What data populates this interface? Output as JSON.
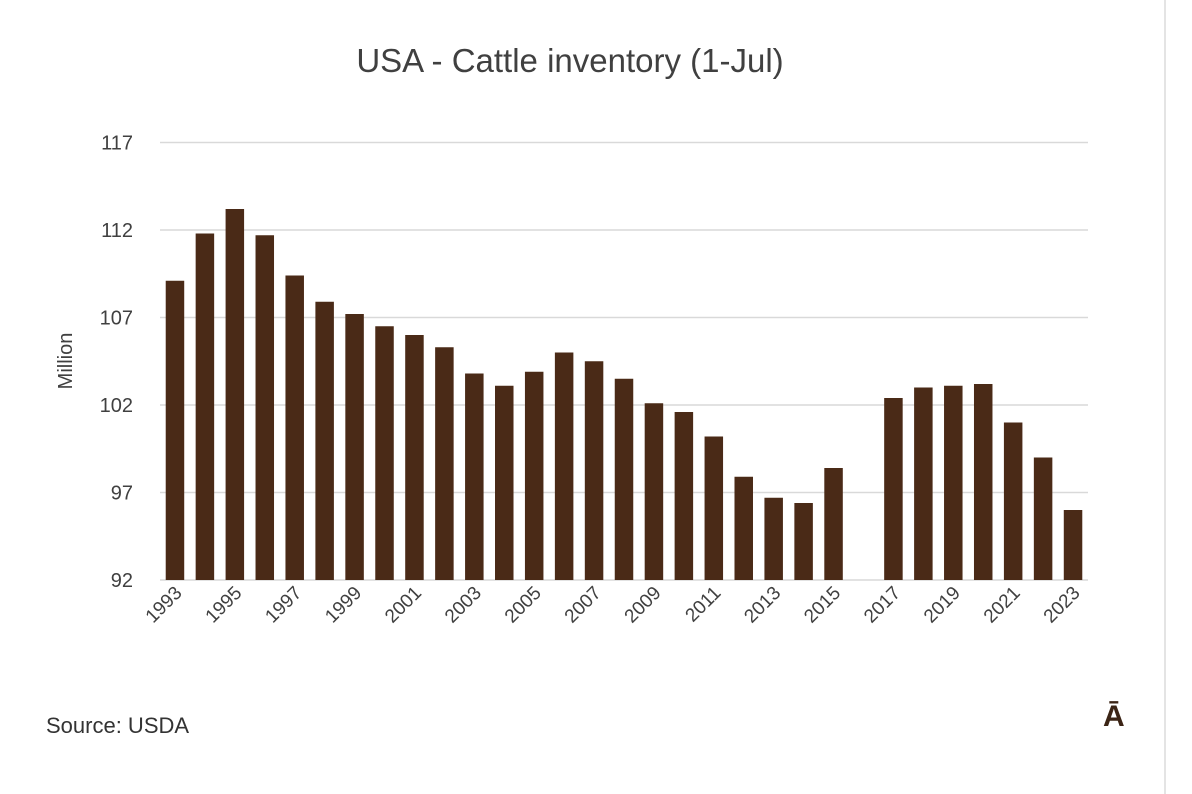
{
  "chart_data": {
    "type": "bar",
    "title": "USA - Cattle inventory (1-Jul)",
    "ylabel": "Million",
    "xlabel": "",
    "ylim": [
      92,
      117
    ],
    "yticks": [
      92,
      97,
      102,
      107,
      112,
      117
    ],
    "grid": true,
    "bar_color": "#4a2a17",
    "categories": [
      "1993",
      "1994",
      "1995",
      "1996",
      "1997",
      "1998",
      "1999",
      "2000",
      "2001",
      "2002",
      "2003",
      "2004",
      "2005",
      "2006",
      "2007",
      "2008",
      "2009",
      "2010",
      "2011",
      "2012",
      "2013",
      "2014",
      "2015",
      "2016",
      "2017",
      "2018",
      "2019",
      "2020",
      "2021",
      "2022",
      "2023"
    ],
    "xtick_labels": [
      "1993",
      "1995",
      "1997",
      "1999",
      "2001",
      "2003",
      "2005",
      "2007",
      "2009",
      "2011",
      "2013",
      "2015",
      "2017",
      "2019",
      "2021",
      "2023"
    ],
    "values": [
      109.1,
      111.8,
      113.2,
      111.7,
      109.4,
      107.9,
      107.2,
      106.5,
      106.0,
      105.3,
      103.8,
      103.1,
      103.9,
      105.0,
      104.5,
      103.5,
      102.1,
      101.6,
      100.2,
      97.9,
      96.7,
      96.4,
      98.4,
      null,
      102.4,
      103.0,
      103.1,
      103.2,
      101.0,
      99.0,
      96.0
    ]
  },
  "source": "Source: USDA",
  "logo": "Ā"
}
